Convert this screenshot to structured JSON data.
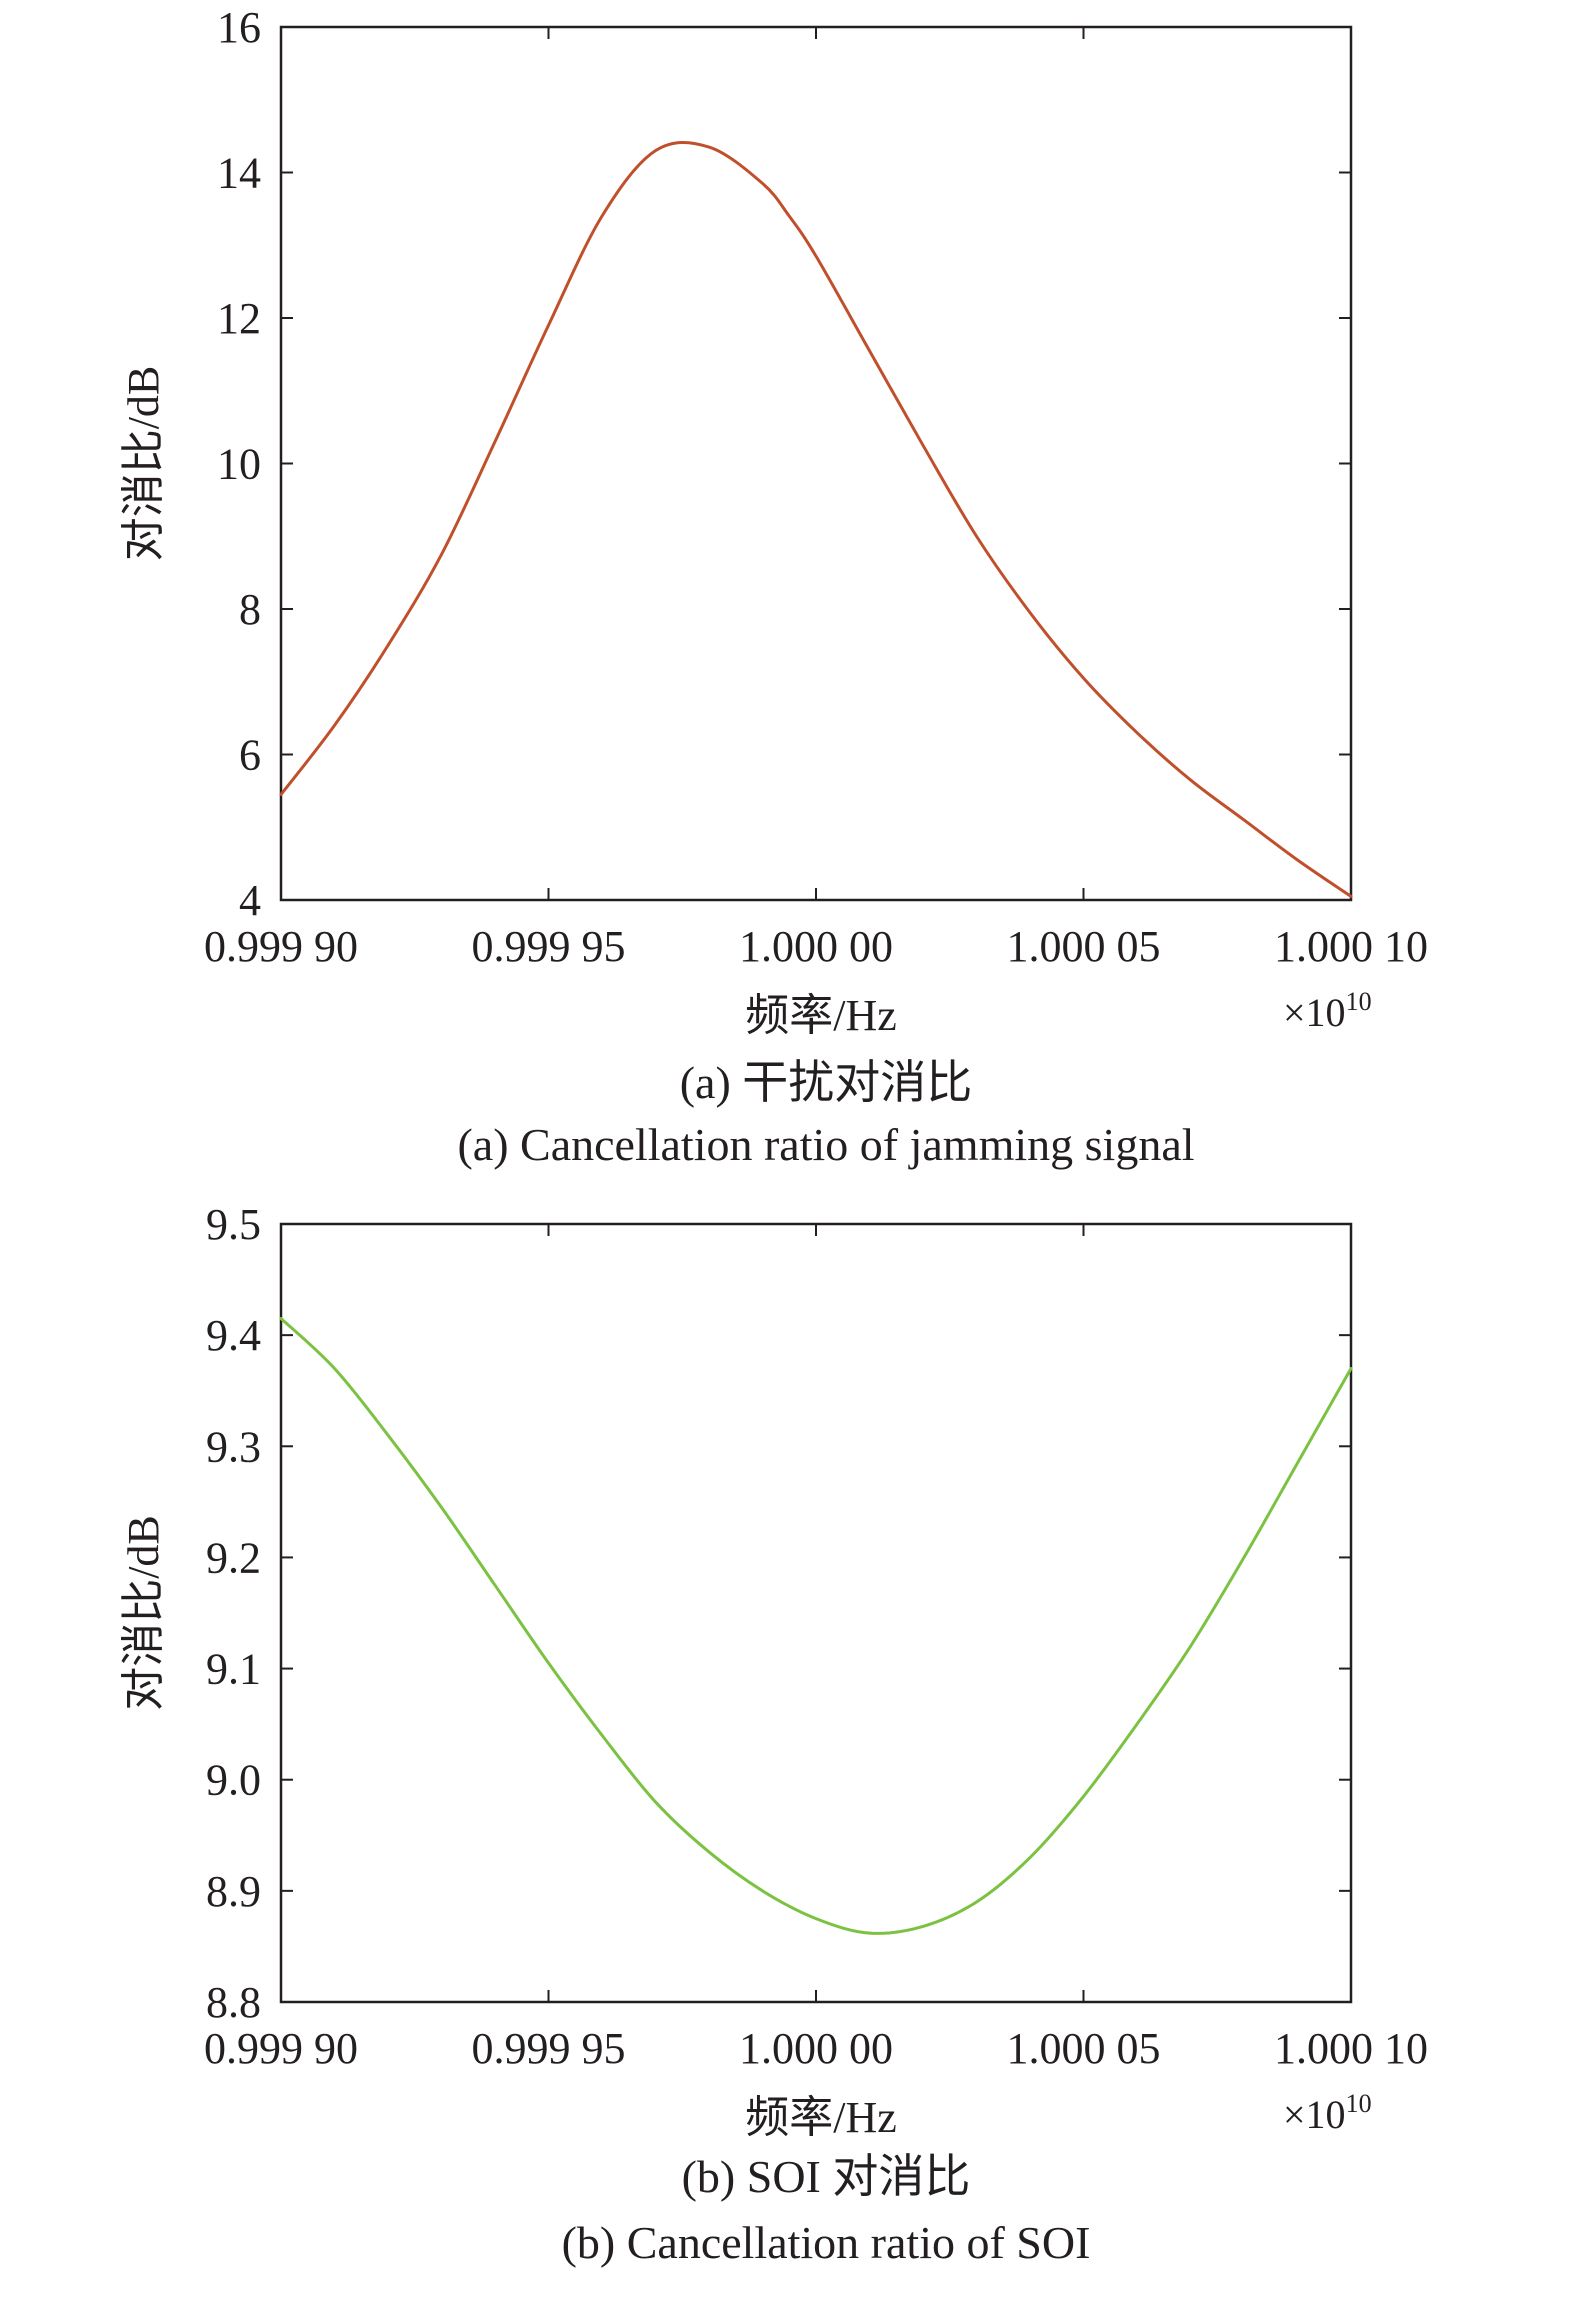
{
  "chart_data": [
    {
      "id": "a",
      "type": "line",
      "title": "",
      "caption_cn": "(a) 干扰对消比",
      "caption_en": "(a) Cancellation ratio of jamming signal",
      "xlabel": "频率/Hz",
      "ylabel": "对消比/dB",
      "x_multiplier": "×10",
      "x_multiplier_exp": "10",
      "xlim": [
        0.9999,
        1.0001
      ],
      "ylim": [
        4,
        16
      ],
      "xticks": [
        0.9999,
        0.99995,
        1.0,
        1.00005,
        1.0001
      ],
      "xtick_labels": [
        "0.999 90",
        "0.999 95",
        "1.000 00",
        "1.000 05",
        "1.000 10"
      ],
      "yticks": [
        4,
        6,
        8,
        10,
        12,
        14,
        16
      ],
      "ytick_labels": [
        "4",
        "6",
        "8",
        "10",
        "12",
        "14",
        "16"
      ],
      "grid": false,
      "series": [
        {
          "color": "#c0502c",
          "x": [
            0.9999,
            0.99991,
            0.99992,
            0.99993,
            0.99994,
            0.99995,
            0.99996,
            0.99997,
            0.99998,
            0.99999,
            0.999995,
            1.0,
            1.00001,
            1.00002,
            1.00003,
            1.00004,
            1.00005,
            1.00006,
            1.00007,
            1.00008,
            1.00009,
            1.0001
          ],
          "y": [
            5.45,
            6.4,
            7.5,
            8.75,
            10.3,
            11.9,
            13.4,
            14.3,
            14.35,
            13.85,
            13.4,
            12.85,
            11.55,
            10.25,
            9.0,
            7.95,
            7.05,
            6.3,
            5.65,
            5.1,
            4.55,
            4.05
          ]
        }
      ]
    },
    {
      "id": "b",
      "type": "line",
      "title": "",
      "caption_cn": "(b) SOI 对消比",
      "caption_en": "(b) Cancellation ratio of SOI",
      "xlabel": "频率/Hz",
      "ylabel": "对消比/dB",
      "x_multiplier": "×10",
      "x_multiplier_exp": "10",
      "xlim": [
        0.9999,
        1.0001
      ],
      "ylim": [
        8.8,
        9.5
      ],
      "xticks": [
        0.9999,
        0.99995,
        1.0,
        1.00005,
        1.0001
      ],
      "xtick_labels": [
        "0.999 90",
        "0.999 95",
        "1.000 00",
        "1.000 05",
        "1.000 10"
      ],
      "yticks": [
        8.8,
        8.9,
        9.0,
        9.1,
        9.2,
        9.3,
        9.4,
        9.5
      ],
      "ytick_labels": [
        "8.8",
        "8.9",
        "9.0",
        "9.1",
        "9.2",
        "9.3",
        "9.4",
        "9.5"
      ],
      "grid": false,
      "series": [
        {
          "color": "#7cc242",
          "x": [
            0.9999,
            0.99991,
            0.99992,
            0.99993,
            0.99994,
            0.99995,
            0.99996,
            0.99997,
            0.99998,
            0.99999,
            1.0,
            1.00001,
            1.00002,
            1.00003,
            1.00004,
            1.00005,
            1.00006,
            1.00007,
            1.00008,
            1.00009,
            1.0001
          ],
          "y": [
            9.415,
            9.37,
            9.31,
            9.245,
            9.175,
            9.105,
            9.04,
            8.98,
            8.935,
            8.9,
            8.875,
            8.862,
            8.868,
            8.89,
            8.93,
            8.985,
            9.05,
            9.12,
            9.2,
            9.285,
            9.37
          ]
        }
      ]
    }
  ]
}
